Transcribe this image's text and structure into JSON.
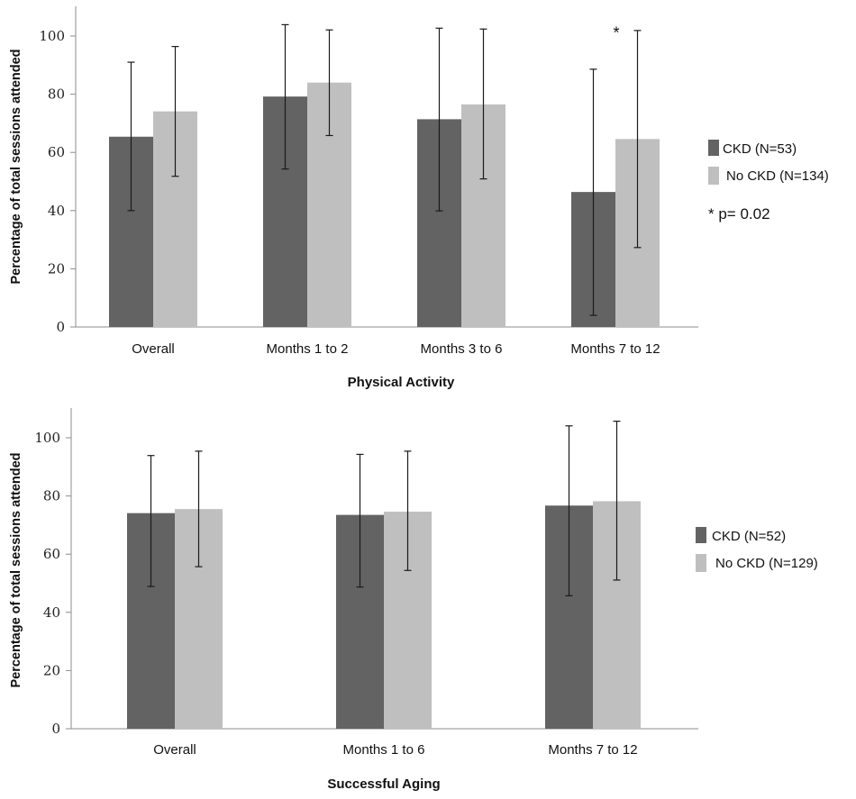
{
  "chart_data": [
    {
      "type": "bar",
      "title": "Physical Activity",
      "xlabel": "Physical Activity",
      "ylabel": "Percentage of total sessions attended",
      "ylim": [
        0,
        110
      ],
      "yticks": [
        0,
        20,
        40,
        60,
        80,
        100
      ],
      "grid": false,
      "legend_position": "right",
      "categories": [
        "Overall",
        "Months 1 to 2",
        "Months 3 to 6",
        "Months 7 to 12"
      ],
      "series": [
        {
          "name": "CKD (N=53)",
          "color": "#626362",
          "values": [
            65.4,
            79.2,
            71.4,
            46.4
          ],
          "error_low": [
            40.0,
            54.3,
            39.9,
            4.0
          ],
          "error_high": [
            91.0,
            103.9,
            102.7,
            88.6
          ]
        },
        {
          "name": "No CKD (N=134)",
          "color": "#bfbfbf",
          "values": [
            74.1,
            84.0,
            76.5,
            64.6
          ],
          "error_low": [
            51.8,
            65.8,
            50.9,
            27.3
          ],
          "error_high": [
            96.4,
            102.1,
            102.4,
            101.9
          ]
        }
      ],
      "annotations": [
        {
          "text": "*",
          "category": "Months 7 to 12",
          "y": 103
        }
      ],
      "note": "* p= 0.02"
    },
    {
      "type": "bar",
      "title": "Successful Aging",
      "xlabel": "Successful Aging",
      "ylabel": "Percentage of total sessions attended",
      "ylim": [
        0,
        110
      ],
      "yticks": [
        0,
        20,
        40,
        60,
        80,
        100
      ],
      "grid": false,
      "legend_position": "right",
      "categories": [
        "Overall",
        "Months 1 to 6",
        "Months 7 to 12"
      ],
      "series": [
        {
          "name": "CKD (N=52)",
          "color": "#626362",
          "values": [
            74.1,
            73.5,
            76.7
          ],
          "error_low": [
            48.9,
            48.7,
            45.7
          ],
          "error_high": [
            93.9,
            94.3,
            104.1
          ]
        },
        {
          "name": "No CKD (N=129)",
          "color": "#bfbfbf",
          "values": [
            75.5,
            74.6,
            78.2
          ],
          "error_low": [
            55.7,
            54.4,
            51.1
          ],
          "error_high": [
            95.4,
            95.4,
            105.7
          ]
        }
      ],
      "annotations": [],
      "note": ""
    }
  ]
}
